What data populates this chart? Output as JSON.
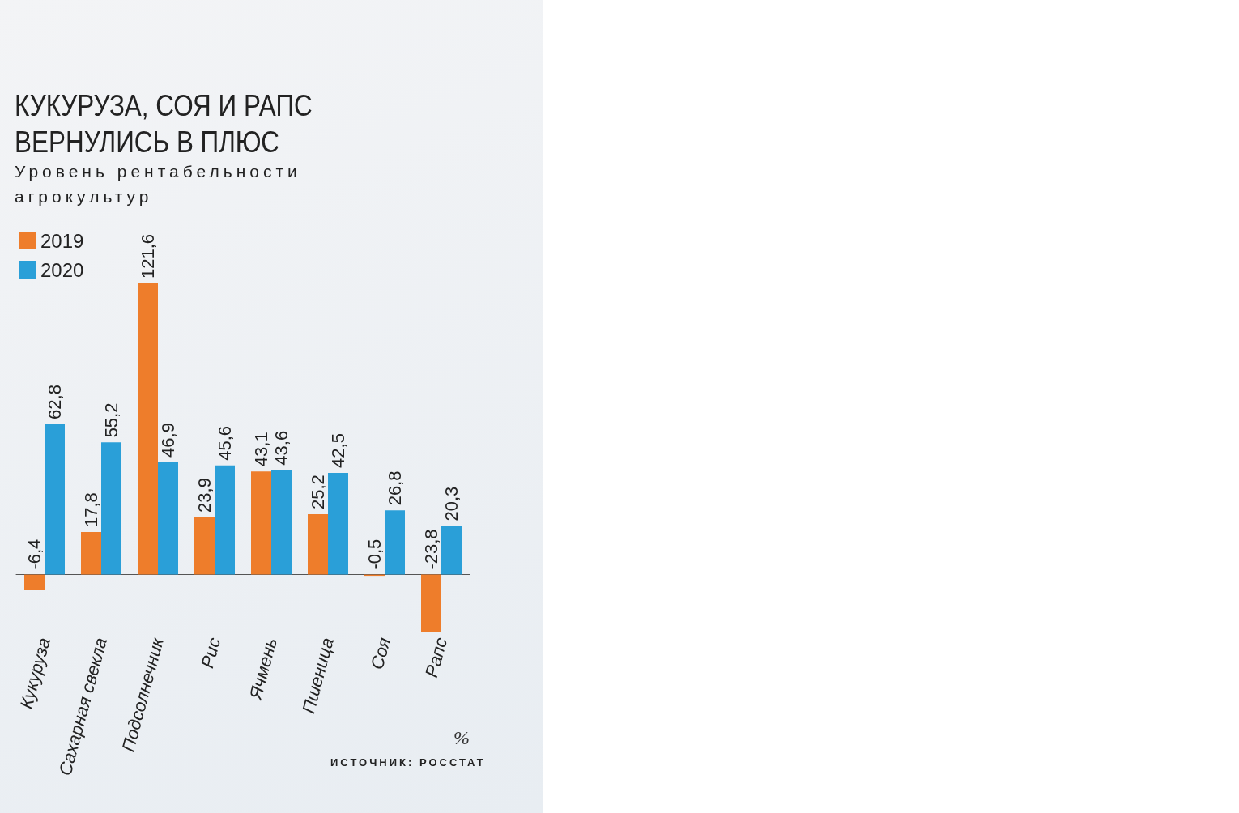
{
  "chart_data": {
    "type": "bar",
    "title": "КУКУРУЗА, СОЯ И РАПС ВЕРНУЛИСЬ В ПЛЮС",
    "subtitle": "Уровень рентабельности агрокультур",
    "categories": [
      "Кукуруза",
      "Сахарная свекла",
      "Подсолнечник",
      "Рис",
      "Ячмень",
      "Пшеница",
      "Соя",
      "Рапс"
    ],
    "series": [
      {
        "name": "2019",
        "color": "#ee7d2b",
        "values": [
          -6.4,
          17.8,
          121.6,
          23.9,
          43.1,
          25.2,
          -0.5,
          -23.8
        ],
        "value_labels": [
          "-6,4",
          "17,8",
          "121,6",
          "23,9",
          "43,1",
          "25,2",
          "-0,5",
          "-23,8"
        ]
      },
      {
        "name": "2020",
        "color": "#2a9fd8",
        "values": [
          62.8,
          55.2,
          46.9,
          45.6,
          43.6,
          42.5,
          26.8,
          20.3
        ],
        "value_labels": [
          "62,8",
          "55,2",
          "46,9",
          "45,6",
          "43,6",
          "42,5",
          "26,8",
          "20,3"
        ]
      }
    ],
    "legend": "top left",
    "tick_labels": "x",
    "annotations": [
      "%",
      "ИСТОЧНИК: РОССТАТ"
    ]
  }
}
